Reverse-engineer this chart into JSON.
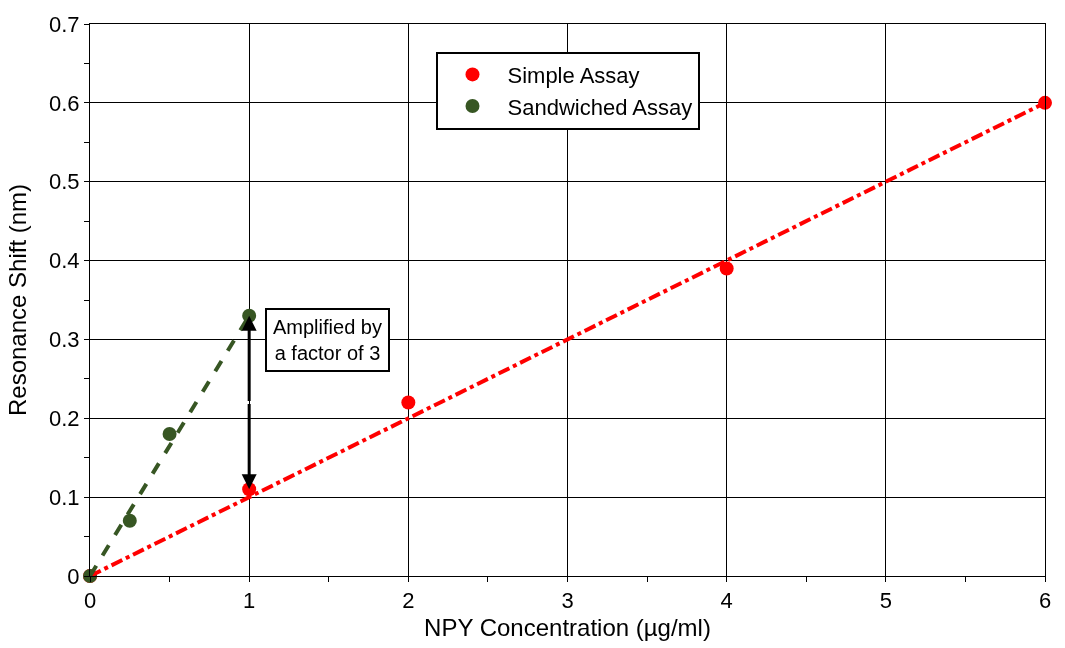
{
  "chart_data": {
    "type": "scatter",
    "xlabel": "NPY Concentration (µg/ml)",
    "ylabel": "Resonance Shift (nm)",
    "series": [
      {
        "name": "Simple Assay",
        "color": "#ff0000",
        "marker": "circle",
        "x": [
          0,
          1,
          2,
          4,
          6
        ],
        "values": [
          0,
          0.11,
          0.22,
          0.39,
          0.6
        ]
      },
      {
        "name": "Sandwiched Assay",
        "color": "#375623",
        "marker": "circle",
        "x": [
          0,
          0.25,
          0.5,
          1
        ],
        "values": [
          0,
          0.07,
          0.18,
          0.33
        ]
      },
      {
        "type": "line",
        "color": "#ff0000",
        "line_style": "dashdot",
        "x": [
          0,
          6
        ],
        "values": [
          0,
          0.6
        ]
      },
      {
        "type": "line",
        "color": "#375623",
        "line_style": "dashed",
        "x": [
          0,
          1
        ],
        "values": [
          0,
          0.33
        ]
      }
    ],
    "annotations": [
      "Amplified by\na factor of 3"
    ],
    "xlim": [
      0,
      6
    ],
    "xticks": [
      0,
      1,
      2,
      3,
      4,
      5,
      6
    ],
    "ylim": [
      0,
      0.7
    ],
    "yticks": [
      0,
      0.1,
      0.2,
      0.3,
      0.4,
      0.5,
      0.6,
      0.7
    ],
    "grid": true,
    "legend": "top"
  }
}
